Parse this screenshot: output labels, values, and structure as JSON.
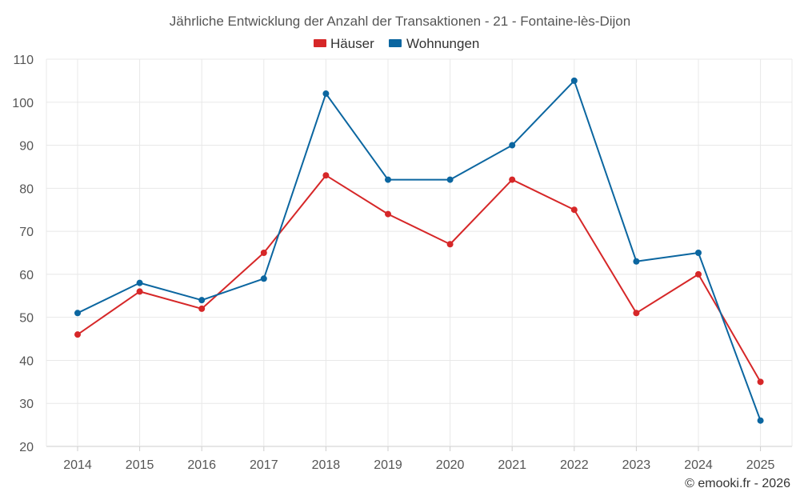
{
  "chart_data": {
    "type": "line",
    "title": "Jährliche Entwicklung der Anzahl der Transaktionen - 21 - Fontaine-lès-Dijon",
    "categories": [
      "2014",
      "2015",
      "2016",
      "2017",
      "2018",
      "2019",
      "2020",
      "2021",
      "2022",
      "2023",
      "2024",
      "2025"
    ],
    "series": [
      {
        "name": "Häuser",
        "color": "#d62728",
        "values": [
          46,
          56,
          52,
          65,
          83,
          74,
          67,
          82,
          75,
          51,
          60,
          35
        ]
      },
      {
        "name": "Wohnungen",
        "color": "#0b66a0",
        "values": [
          51,
          58,
          54,
          59,
          102,
          82,
          82,
          90,
          105,
          63,
          65,
          26
        ]
      }
    ],
    "ylim": [
      20,
      110
    ],
    "yticks": [
      20,
      30,
      40,
      50,
      60,
      70,
      80,
      90,
      100,
      110
    ],
    "xlabel": "",
    "ylabel": "",
    "grid": true,
    "legend": "top-center"
  },
  "credit": "© emooki.fr - 2026"
}
